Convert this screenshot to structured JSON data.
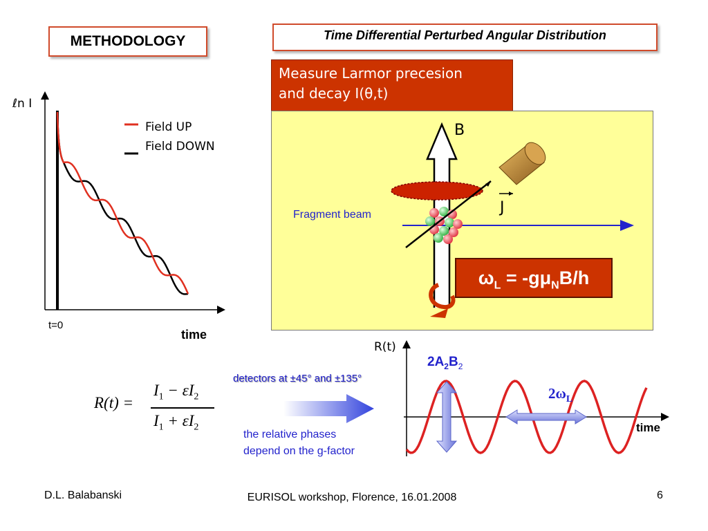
{
  "slide": {
    "methodology_label": "METHODOLOGY",
    "tdpad_title": "Time Differential Perturbed Angular Distribution",
    "larmor_line1": "Measure Larmor precesion",
    "larmor_line2": "and decay  I(θ,t)",
    "omega_prefix": "ω",
    "omega_sub_L": "L",
    "omega_mid": " = -gμ",
    "omega_sub_N": "N",
    "omega_suffix": "B/h",
    "b_label": "B",
    "j_label": "J",
    "fragment_beam": "Fragment beam",
    "detectors_text": "detectors at ±45° and ±135°",
    "phases_line1": "the relative phases",
    "phases_line2": "depend on the g-factor",
    "amp_label_main": "2A",
    "amp_sub_2a": "2",
    "amp_label_b": "B",
    "amp_sub_2b": "2",
    "period_prefix": "2ω",
    "period_sub": "L",
    "formula_lhs": "R(t) =",
    "formula_num_I1": "I",
    "formula_num_s1": "1",
    "formula_num_op": " − εI",
    "formula_num_s2": "2",
    "formula_den_I1": "I",
    "formula_den_s1": "1",
    "formula_den_op": " + εI",
    "formula_den_s2": "2"
  },
  "left_plot": {
    "ylabel": "ℓn I",
    "x_origin_label": "t=0",
    "xlabel": "time",
    "legend": [
      {
        "name": "Field UP",
        "color": "#e03020"
      },
      {
        "name": "Field DOWN",
        "color": "#000000"
      }
    ]
  },
  "right_plot": {
    "ylabel": "R(t)",
    "xlabel": "time",
    "curve_color": "#dd2222"
  },
  "colors": {
    "box_red": "#cc3300",
    "panel_yellow": "#ffff99",
    "beam_blue": "#2222cc",
    "arrow_blue": "#6a74d8"
  },
  "footer": {
    "left": "D.L. Balabanski",
    "center": "EURISOL workshop, Florence, 16.01.2008",
    "right": "6"
  }
}
